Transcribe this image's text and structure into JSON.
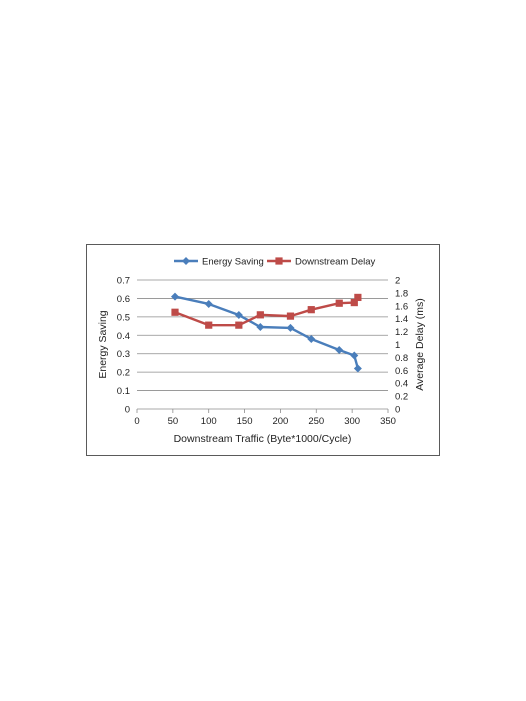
{
  "chart_data": {
    "type": "line",
    "title": "",
    "xlabel": "Downstream Traffic (Byte*1000/Cycle)",
    "ylabel": "Energy Saving",
    "y2label": "Average Delay (ms)",
    "xlim": [
      0,
      350
    ],
    "ylim": [
      0,
      0.7
    ],
    "y2lim": [
      0,
      2
    ],
    "xticks": [
      "0",
      "50",
      "100",
      "150",
      "200",
      "250",
      "300",
      "350"
    ],
    "yticks": [
      "0",
      "0.1",
      "0.2",
      "0.3",
      "0.4",
      "0.5",
      "0.6",
      "0.7"
    ],
    "y2ticks": [
      "0",
      "0.2",
      "0.4",
      "0.6",
      "0.8",
      "1",
      "1.2",
      "1.4",
      "1.6",
      "1.8",
      "2"
    ],
    "grid": true,
    "legend_position": "top",
    "series": [
      {
        "name": "Energy Saving",
        "axis": "left",
        "color": "#4a7ebb",
        "marker": "diamond",
        "x": [
          53,
          100,
          142,
          172,
          214,
          243,
          282,
          303,
          308
        ],
        "y": [
          0.61,
          0.57,
          0.51,
          0.445,
          0.44,
          0.38,
          0.32,
          0.29,
          0.22
        ]
      },
      {
        "name": "Downstream Delay",
        "axis": "right",
        "color": "#be4b48",
        "marker": "square",
        "x": [
          53,
          100,
          142,
          172,
          214,
          243,
          282,
          303,
          308
        ],
        "y": [
          1.5,
          1.3,
          1.3,
          1.46,
          1.44,
          1.54,
          1.64,
          1.65,
          1.73
        ]
      }
    ]
  }
}
